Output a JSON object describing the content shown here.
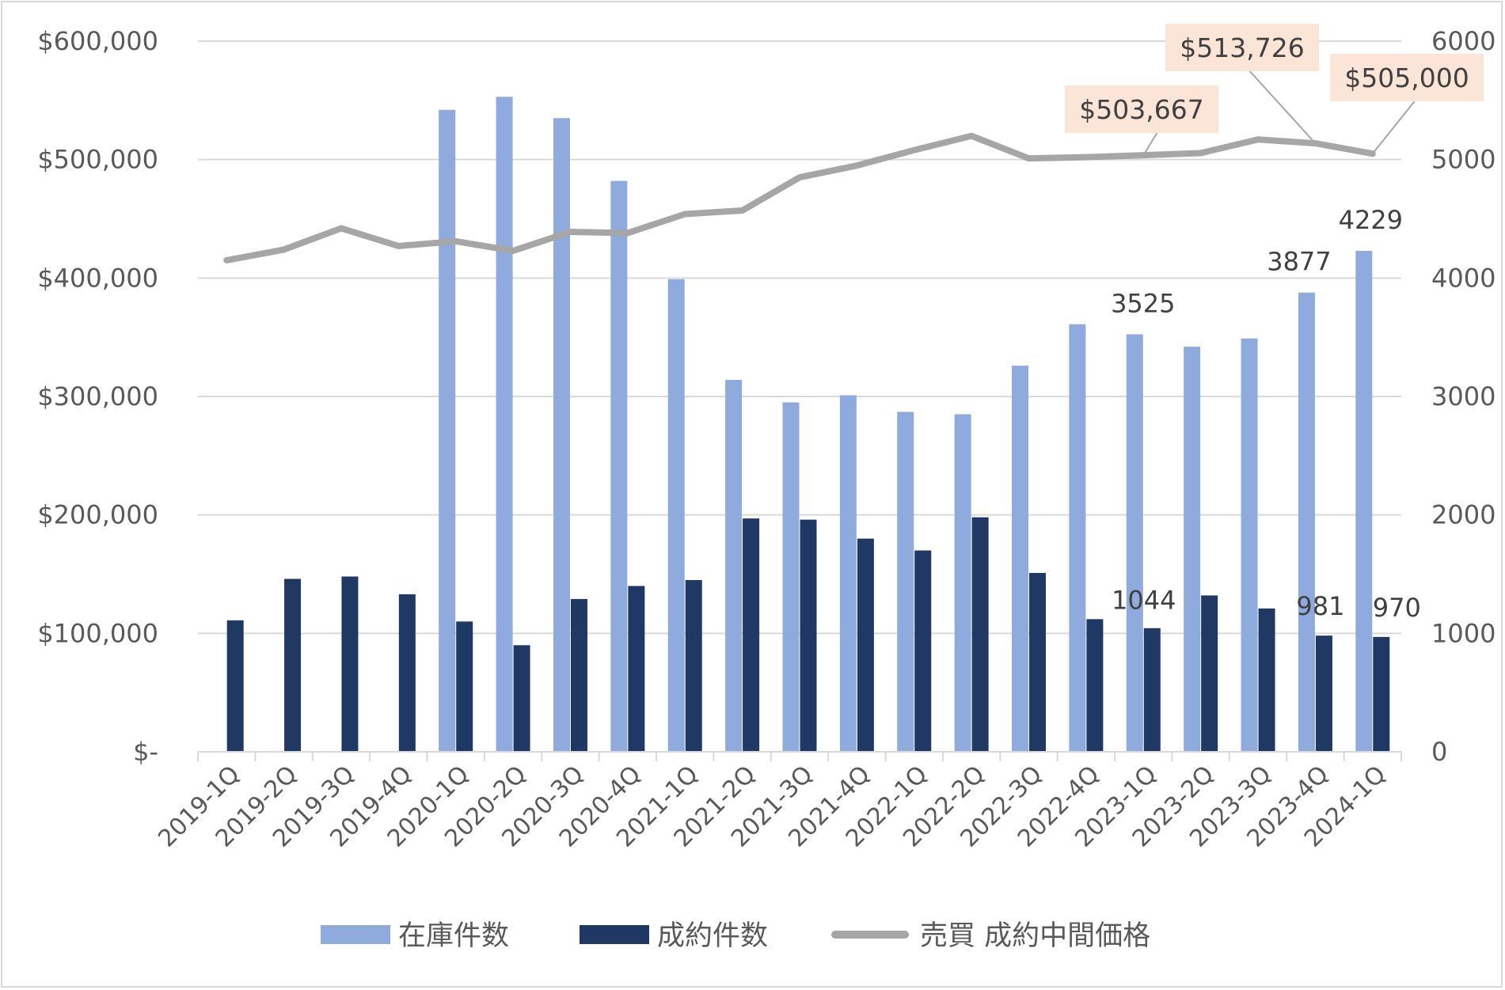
{
  "chart_data": {
    "type": "bar+line",
    "categories": [
      "2019-1Q",
      "2019-2Q",
      "2019-3Q",
      "2019-4Q",
      "2020-1Q",
      "2020-2Q",
      "2020-3Q",
      "2020-4Q",
      "2021-1Q",
      "2021-2Q",
      "2021-3Q",
      "2021-4Q",
      "2022-1Q",
      "2022-2Q",
      "2022-3Q",
      "2022-4Q",
      "2023-1Q",
      "2023-2Q",
      "2023-3Q",
      "2023-4Q",
      "2024-1Q"
    ],
    "series": [
      {
        "name": "在庫件数",
        "type": "bar",
        "axis": "right",
        "color": "#8faadc",
        "values": [
          0,
          0,
          0,
          0,
          5420,
          5530,
          5350,
          4820,
          3990,
          3140,
          2950,
          3010,
          2870,
          2850,
          3260,
          3610,
          3525,
          3420,
          3490,
          3877,
          4229
        ]
      },
      {
        "name": "成約件数",
        "type": "bar",
        "axis": "right",
        "color": "#1f3864",
        "values": [
          1110,
          1460,
          1480,
          1330,
          1100,
          900,
          1290,
          1400,
          1450,
          1970,
          1960,
          1800,
          1700,
          1980,
          1510,
          1120,
          1044,
          1320,
          1210,
          981,
          970
        ]
      },
      {
        "name": "売買 成約中間価格",
        "type": "line",
        "axis": "left",
        "color": "#a6a6a6",
        "values": [
          415000,
          424000,
          442000,
          427000,
          431000,
          423000,
          439000,
          438000,
          454000,
          457000,
          485000,
          495000,
          508000,
          520000,
          501000,
          502000,
          503667,
          505500,
          517000,
          513726,
          505000
        ]
      }
    ],
    "y_left": {
      "ylim": [
        0,
        600000
      ],
      "ticks": [
        "$-",
        "$100,000",
        "$200,000",
        "$300,000",
        "$400,000",
        "$500,000",
        "$600,000"
      ]
    },
    "y_right": {
      "ylim": [
        0,
        6000
      ],
      "ticks": [
        "0",
        "1000",
        "2000",
        "3000",
        "4000",
        "5000",
        "6000"
      ]
    },
    "data_labels": [
      {
        "series": "在庫件数",
        "index": 16,
        "text": "3525"
      },
      {
        "series": "在庫件数",
        "index": 19,
        "text": "3877"
      },
      {
        "series": "在庫件数",
        "index": 20,
        "text": "4229"
      },
      {
        "series": "成約件数",
        "index": 16,
        "text": "1044"
      },
      {
        "series": "成約件数",
        "index": 19,
        "text": "981"
      },
      {
        "series": "成約件数",
        "index": 20,
        "text": "970"
      }
    ],
    "callouts": [
      {
        "series": "売買 成約中間価格",
        "index": 16,
        "text": "$503,667",
        "bg": "#fbe5d6"
      },
      {
        "series": "売買 成約中間価格",
        "index": 19,
        "text": "$513,726",
        "bg": "#fbe5d6"
      },
      {
        "series": "売買 成約中間価格",
        "index": 20,
        "text": "$505,000",
        "bg": "#fbe5d6"
      }
    ],
    "grid": true,
    "legend_position": "bottom",
    "colors": {
      "gridline": "#d9d9d9",
      "axis_text": "#595959",
      "label_text": "#404040"
    }
  }
}
